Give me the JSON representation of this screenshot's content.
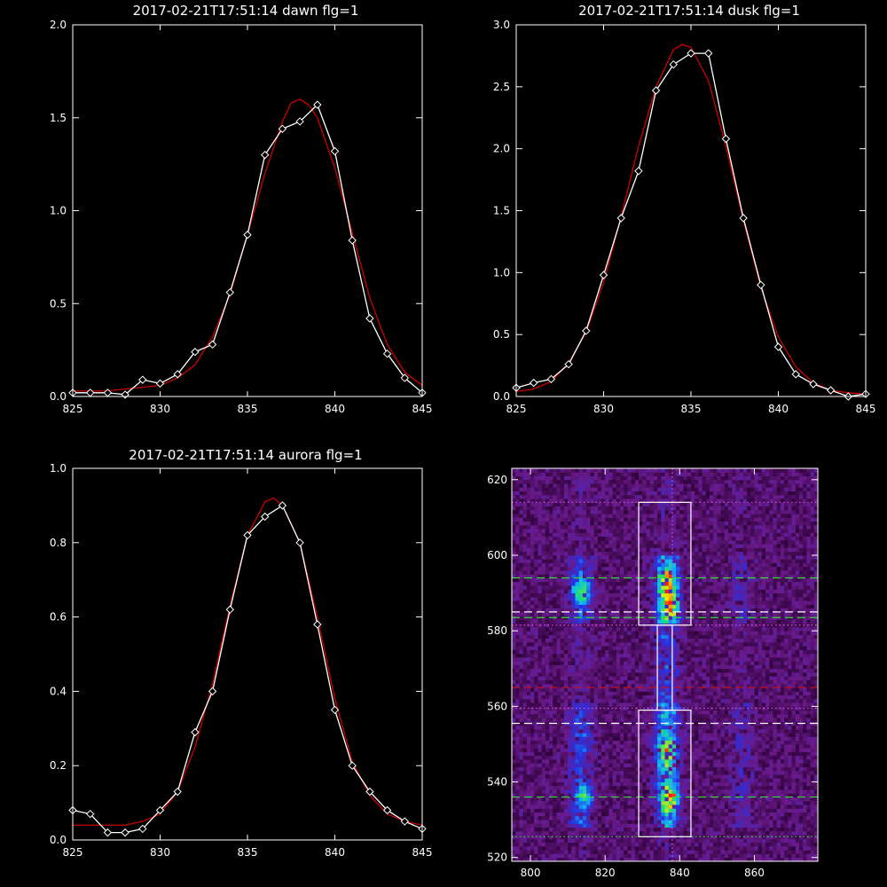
{
  "chart_data": [
    {
      "type": "line",
      "title": "2017-02-21T17:51:14 dawn flg=1",
      "xlim": [
        825,
        845
      ],
      "ylim": [
        0,
        2.0
      ],
      "xticks": [
        825,
        830,
        835,
        840,
        845
      ],
      "yticks": [
        0.0,
        0.5,
        1.0,
        1.5,
        2.0
      ],
      "ytick_labels": [
        "0.0",
        "0.5",
        "1.0",
        "1.5",
        "2.0"
      ],
      "series": [
        {
          "color": "#ffffff",
          "marker": "diamond",
          "x": [
            825,
            826,
            827,
            828,
            829,
            830,
            831,
            832,
            833,
            834,
            835,
            836,
            837,
            838,
            839,
            840,
            841,
            842,
            843,
            844,
            845
          ],
          "y": [
            0.02,
            0.02,
            0.02,
            0.01,
            0.09,
            0.07,
            0.12,
            0.24,
            0.28,
            0.56,
            0.87,
            1.3,
            1.44,
            1.48,
            1.57,
            1.32,
            0.84,
            0.42,
            0.23,
            0.1,
            0.02
          ]
        },
        {
          "color": "#cc0000",
          "marker": "none",
          "x": [
            825,
            826,
            827,
            828,
            829,
            830,
            831,
            832,
            833,
            834,
            835,
            836,
            837,
            837.5,
            838,
            838.5,
            839,
            840,
            841,
            842,
            843,
            844,
            845
          ],
          "y": [
            0.03,
            0.03,
            0.03,
            0.04,
            0.05,
            0.06,
            0.1,
            0.17,
            0.32,
            0.55,
            0.87,
            1.2,
            1.48,
            1.58,
            1.6,
            1.57,
            1.5,
            1.23,
            0.88,
            0.53,
            0.28,
            0.13,
            0.06
          ]
        }
      ]
    },
    {
      "type": "line",
      "title": "2017-02-21T17:51:14 dusk flg=1",
      "xlim": [
        825,
        845
      ],
      "ylim": [
        0,
        3.0
      ],
      "xticks": [
        825,
        830,
        835,
        840,
        845
      ],
      "yticks": [
        0.0,
        0.5,
        1.0,
        1.5,
        2.0,
        2.5,
        3.0
      ],
      "ytick_labels": [
        "0.0",
        "0.5",
        "1.0",
        "1.5",
        "2.0",
        "2.5",
        "3.0"
      ],
      "series": [
        {
          "color": "#ffffff",
          "marker": "diamond",
          "x": [
            825,
            826,
            827,
            828,
            829,
            830,
            831,
            832,
            833,
            834,
            835,
            836,
            837,
            838,
            839,
            840,
            841,
            842,
            843,
            844,
            845
          ],
          "y": [
            0.07,
            0.11,
            0.14,
            0.26,
            0.53,
            0.98,
            1.44,
            1.82,
            2.47,
            2.68,
            2.77,
            2.77,
            2.08,
            1.44,
            0.9,
            0.4,
            0.18,
            0.1,
            0.05,
            0.0,
            0.02
          ]
        },
        {
          "color": "#cc0000",
          "marker": "none",
          "x": [
            825,
            826,
            827,
            828,
            829,
            830,
            831,
            832,
            833,
            834,
            834.5,
            835,
            836,
            837,
            838,
            839,
            840,
            841,
            842,
            843,
            844,
            845
          ],
          "y": [
            0.04,
            0.06,
            0.12,
            0.27,
            0.52,
            0.92,
            1.45,
            2.02,
            2.5,
            2.8,
            2.84,
            2.82,
            2.55,
            2.02,
            1.42,
            0.88,
            0.48,
            0.24,
            0.11,
            0.05,
            0.03,
            0.02
          ]
        }
      ]
    },
    {
      "type": "line",
      "title": "2017-02-21T17:51:14 aurora flg=1",
      "xlim": [
        825,
        845
      ],
      "ylim": [
        0,
        1.0
      ],
      "xticks": [
        825,
        830,
        835,
        840,
        845
      ],
      "yticks": [
        0.0,
        0.2,
        0.4,
        0.6,
        0.8,
        1.0
      ],
      "ytick_labels": [
        "0.0",
        "0.2",
        "0.4",
        "0.6",
        "0.8",
        "1.0"
      ],
      "series": [
        {
          "color": "#ffffff",
          "marker": "diamond",
          "x": [
            825,
            826,
            827,
            828,
            829,
            830,
            831,
            832,
            833,
            834,
            835,
            836,
            837,
            838,
            839,
            840,
            841,
            842,
            843,
            844,
            845
          ],
          "y": [
            0.08,
            0.07,
            0.02,
            0.02,
            0.03,
            0.08,
            0.13,
            0.29,
            0.4,
            0.62,
            0.82,
            0.87,
            0.9,
            0.8,
            0.58,
            0.35,
            0.2,
            0.13,
            0.08,
            0.05,
            0.03
          ]
        },
        {
          "color": "#cc0000",
          "marker": "none",
          "x": [
            825,
            826,
            827,
            828,
            829,
            830,
            831,
            832,
            833,
            834,
            835,
            836,
            836.5,
            837,
            838,
            839,
            840,
            841,
            842,
            843,
            844,
            845
          ],
          "y": [
            0.04,
            0.04,
            0.04,
            0.04,
            0.05,
            0.07,
            0.13,
            0.25,
            0.42,
            0.63,
            0.82,
            0.91,
            0.92,
            0.9,
            0.8,
            0.6,
            0.38,
            0.21,
            0.12,
            0.07,
            0.05,
            0.04
          ]
        }
      ]
    },
    {
      "type": "heatmap",
      "xlim": [
        795,
        877
      ],
      "ylim": [
        519,
        623
      ],
      "xticks": [
        800,
        820,
        840,
        860
      ],
      "yticks": [
        520,
        540,
        560,
        580,
        600,
        620
      ],
      "colormap": [
        "#2a0033",
        "#6a1a8a",
        "#2830e0",
        "#10b8ff",
        "#20e070",
        "#f0f000",
        "#ff2000"
      ],
      "columns": [
        {
          "x_center": 813,
          "strength": 0.55
        },
        {
          "x_center": 836,
          "strength": 1.0
        },
        {
          "x_center": 856,
          "strength": 0.3
        }
      ],
      "hotspots": [
        {
          "x": 813,
          "y": 590,
          "v": 0.75
        },
        {
          "x": 836,
          "y": 592,
          "v": 1.0
        },
        {
          "x": 837,
          "y": 586,
          "v": 0.95
        },
        {
          "x": 836,
          "y": 548,
          "v": 0.7
        },
        {
          "x": 837,
          "y": 535,
          "v": 0.95
        },
        {
          "x": 814,
          "y": 536,
          "v": 0.55
        }
      ],
      "boxes": [
        {
          "x0": 829,
          "x1": 843,
          "y0": 581.5,
          "y1": 614,
          "color": "#ffffff"
        },
        {
          "x0": 829,
          "x1": 843,
          "y0": 525.5,
          "y1": 559,
          "color": "#ffffff"
        },
        {
          "x0": 834,
          "x1": 838,
          "y0": 559,
          "y1": 581.5,
          "color": "#ffffff"
        }
      ],
      "hlines": [
        {
          "y": 614,
          "color": "#cc55cc",
          "style": "dotted"
        },
        {
          "y": 594,
          "color": "#33dd33",
          "style": "dashed"
        },
        {
          "y": 585,
          "color": "#ffffff",
          "style": "dashed"
        },
        {
          "y": 583.5,
          "color": "#33dd33",
          "style": "dashed"
        },
        {
          "y": 581.5,
          "color": "#cc55cc",
          "style": "dotted"
        },
        {
          "y": 565,
          "color": "#cc1111",
          "style": "dashed"
        },
        {
          "y": 559.5,
          "color": "#cc55cc",
          "style": "dotted"
        },
        {
          "y": 555.5,
          "color": "#ffffff",
          "style": "dashed"
        },
        {
          "y": 536,
          "color": "#33dd33",
          "style": "dashed"
        },
        {
          "y": 525.5,
          "color": "#33dd33",
          "style": "dotted"
        }
      ],
      "vlines": [
        {
          "x": 838,
          "color": "#cc55cc",
          "style": "dotted"
        }
      ]
    }
  ]
}
